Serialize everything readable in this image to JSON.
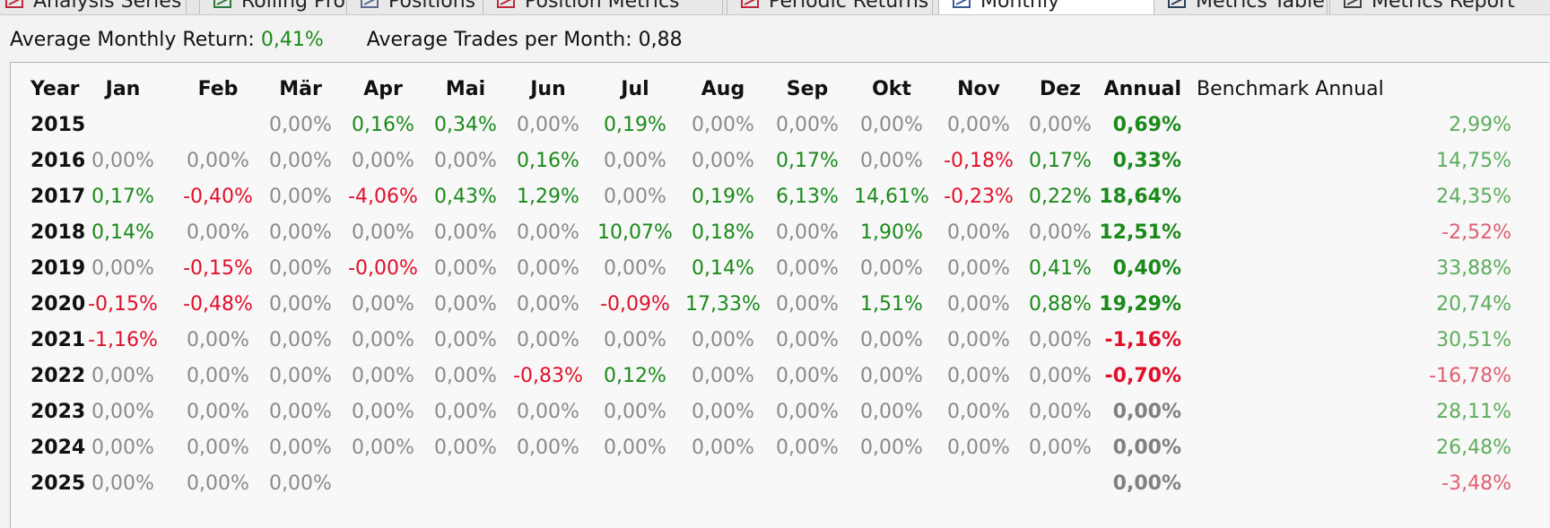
{
  "tabs": [
    {
      "label": "Analysis Series",
      "icon": "analysis-series-icon"
    },
    {
      "label": "Rolling Profit",
      "icon": "rolling-profit-icon"
    },
    {
      "label": "Positions",
      "icon": "positions-icon"
    },
    {
      "label": "Position Metrics",
      "icon": "position-metrics-icon"
    },
    {
      "label": "Periodic Returns",
      "icon": "periodic-returns-icon"
    },
    {
      "label": "Monthly",
      "icon": "monthly-icon"
    },
    {
      "label": "Metrics Table",
      "icon": "metrics-table-icon"
    },
    {
      "label": "Metrics Report",
      "icon": "metrics-report-icon"
    }
  ],
  "active_tab_index": 5,
  "summary": {
    "avg_monthly_return_label": "Average Monthly Return:",
    "avg_monthly_return_value": "0,41%",
    "avg_trades_label": "Average Trades per Month:",
    "avg_trades_value": "0,88"
  },
  "colors": {
    "positive": "#1a8a1a",
    "negative": "#e0102a",
    "zero": "#8a8a8a",
    "benchmark_positive": "#5cae5c",
    "benchmark_negative": "#e06070"
  },
  "table": {
    "headers": [
      "Year",
      "Jan",
      "Feb",
      "Mär",
      "Apr",
      "Mai",
      "Jun",
      "Jul",
      "Aug",
      "Sep",
      "Okt",
      "Nov",
      "Dez",
      "Annual",
      "Benchmark Annual"
    ],
    "rows": [
      {
        "year": "2015",
        "months": [
          "",
          "",
          "0,00%",
          "0,16%",
          "0,34%",
          "0,00%",
          "0,19%",
          "0,00%",
          "0,00%",
          "0,00%",
          "0,00%",
          "0,00%"
        ],
        "annual": "0,69%",
        "benchmark": "2,99%"
      },
      {
        "year": "2016",
        "months": [
          "0,00%",
          "0,00%",
          "0,00%",
          "0,00%",
          "0,00%",
          "0,16%",
          "0,00%",
          "0,00%",
          "0,17%",
          "0,00%",
          "-0,18%",
          "0,17%"
        ],
        "annual": "0,33%",
        "benchmark": "14,75%"
      },
      {
        "year": "2017",
        "months": [
          "0,17%",
          "-0,40%",
          "0,00%",
          "-4,06%",
          "0,43%",
          "1,29%",
          "0,00%",
          "0,19%",
          "6,13%",
          "14,61%",
          "-0,23%",
          "0,22%"
        ],
        "annual": "18,64%",
        "benchmark": "24,35%"
      },
      {
        "year": "2018",
        "months": [
          "0,14%",
          "0,00%",
          "0,00%",
          "0,00%",
          "0,00%",
          "0,00%",
          "10,07%",
          "0,18%",
          "0,00%",
          "1,90%",
          "0,00%",
          "0,00%"
        ],
        "annual": "12,51%",
        "benchmark": "-2,52%"
      },
      {
        "year": "2019",
        "months": [
          "0,00%",
          "-0,15%",
          "0,00%",
          "-0,00%",
          "0,00%",
          "0,00%",
          "0,00%",
          "0,14%",
          "0,00%",
          "0,00%",
          "0,00%",
          "0,41%"
        ],
        "annual": "0,40%",
        "benchmark": "33,88%"
      },
      {
        "year": "2020",
        "months": [
          "-0,15%",
          "-0,48%",
          "0,00%",
          "0,00%",
          "0,00%",
          "0,00%",
          "-0,09%",
          "17,33%",
          "0,00%",
          "1,51%",
          "0,00%",
          "0,88%"
        ],
        "annual": "19,29%",
        "benchmark": "20,74%"
      },
      {
        "year": "2021",
        "months": [
          "-1,16%",
          "0,00%",
          "0,00%",
          "0,00%",
          "0,00%",
          "0,00%",
          "0,00%",
          "0,00%",
          "0,00%",
          "0,00%",
          "0,00%",
          "0,00%"
        ],
        "annual": "-1,16%",
        "benchmark": "30,51%"
      },
      {
        "year": "2022",
        "months": [
          "0,00%",
          "0,00%",
          "0,00%",
          "0,00%",
          "0,00%",
          "-0,83%",
          "0,12%",
          "0,00%",
          "0,00%",
          "0,00%",
          "0,00%",
          "0,00%"
        ],
        "annual": "-0,70%",
        "benchmark": "-16,78%"
      },
      {
        "year": "2023",
        "months": [
          "0,00%",
          "0,00%",
          "0,00%",
          "0,00%",
          "0,00%",
          "0,00%",
          "0,00%",
          "0,00%",
          "0,00%",
          "0,00%",
          "0,00%",
          "0,00%"
        ],
        "annual": "0,00%",
        "benchmark": "28,11%"
      },
      {
        "year": "2024",
        "months": [
          "0,00%",
          "0,00%",
          "0,00%",
          "0,00%",
          "0,00%",
          "0,00%",
          "0,00%",
          "0,00%",
          "0,00%",
          "0,00%",
          "0,00%",
          "0,00%"
        ],
        "annual": "0,00%",
        "benchmark": "26,48%"
      },
      {
        "year": "2025",
        "months": [
          "0,00%",
          "0,00%",
          "0,00%",
          "",
          "",
          "",
          "",
          "",
          "",
          "",
          "",
          ""
        ],
        "annual": "0,00%",
        "benchmark": "-3,48%"
      }
    ]
  }
}
